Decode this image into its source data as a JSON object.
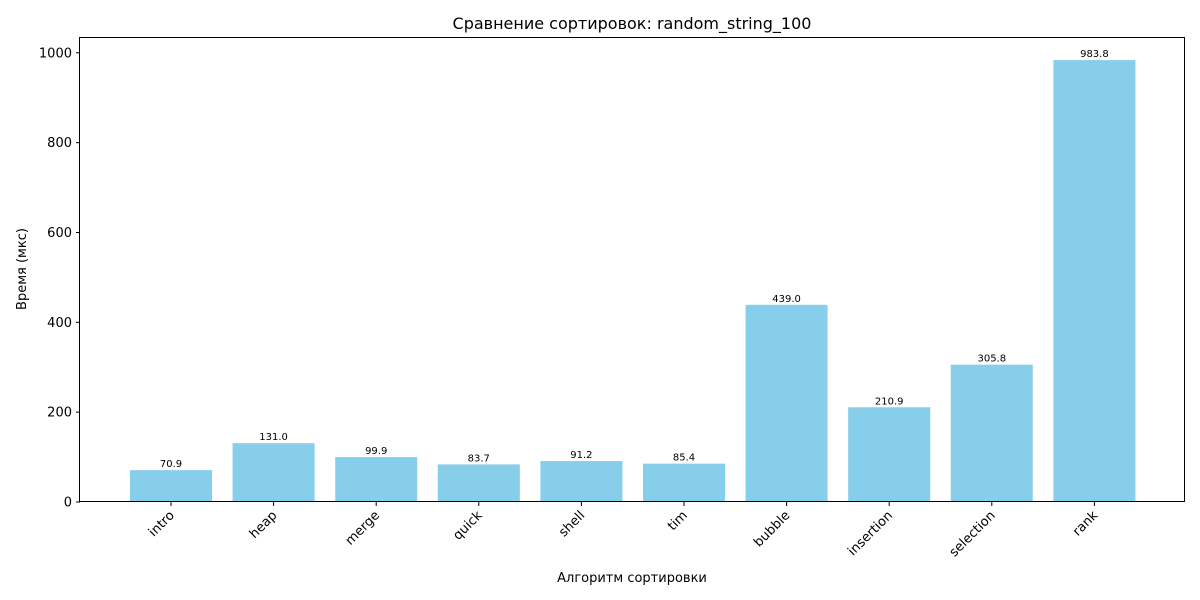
{
  "chart_data": {
    "type": "bar",
    "title": "Сравнение сортировок: random_string_100",
    "xlabel": "Алгоритм сортировки",
    "ylabel": "Время (мкс)",
    "categories": [
      "intro",
      "heap",
      "merge",
      "quick",
      "shell",
      "tim",
      "bubble",
      "insertion",
      "selection",
      "rank"
    ],
    "values": [
      70.9,
      131.0,
      99.9,
      83.7,
      91.2,
      85.4,
      439.0,
      210.9,
      305.8,
      983.8
    ],
    "value_labels": [
      "70.9",
      "131.0",
      "99.9",
      "83.7",
      "91.2",
      "85.4",
      "439.0",
      "210.9",
      "305.8",
      "983.8"
    ],
    "ylim": [
      0,
      1033
    ],
    "yticks": [
      0,
      200,
      400,
      600,
      800,
      1000
    ],
    "ytick_labels": [
      "0",
      "200",
      "400",
      "600",
      "800",
      "1000"
    ],
    "grid": false,
    "legend": "none",
    "bar_color": "#87ceeb"
  }
}
